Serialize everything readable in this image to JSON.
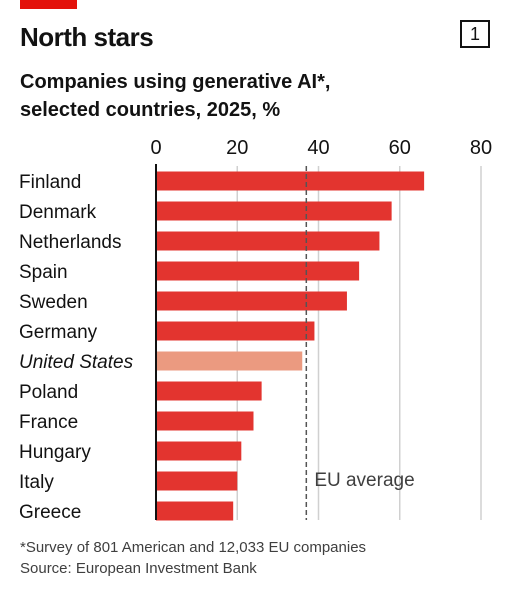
{
  "header": {
    "title": "North stars",
    "badge": "1"
  },
  "subtitle_line1": "Companies using generative AI*,",
  "subtitle_line2": "selected countries, 2025, %",
  "footnote_line1": "*Survey of 801 American and 12,033 EU companies",
  "footnote_line2": "Source: European Investment Bank",
  "colors": {
    "bar": "#e3342f",
    "highlight": "#eb9a80",
    "brand": "#e3120b",
    "grid": "#d0d0d0",
    "reference": "#555555"
  },
  "chart_data": {
    "type": "bar",
    "orientation": "horizontal",
    "categories": [
      "Finland",
      "Denmark",
      "Netherlands",
      "Spain",
      "Sweden",
      "Germany",
      "United States",
      "Poland",
      "France",
      "Hungary",
      "Italy",
      "Greece"
    ],
    "values": [
      66,
      58,
      55,
      50,
      47,
      39,
      36,
      26,
      24,
      21,
      20,
      19
    ],
    "highlight": "United States",
    "xlim": [
      0,
      80
    ],
    "xticks": [
      0,
      20,
      40,
      60,
      80
    ],
    "reference_line": {
      "value": 37,
      "label": "EU average"
    },
    "grid": true
  }
}
